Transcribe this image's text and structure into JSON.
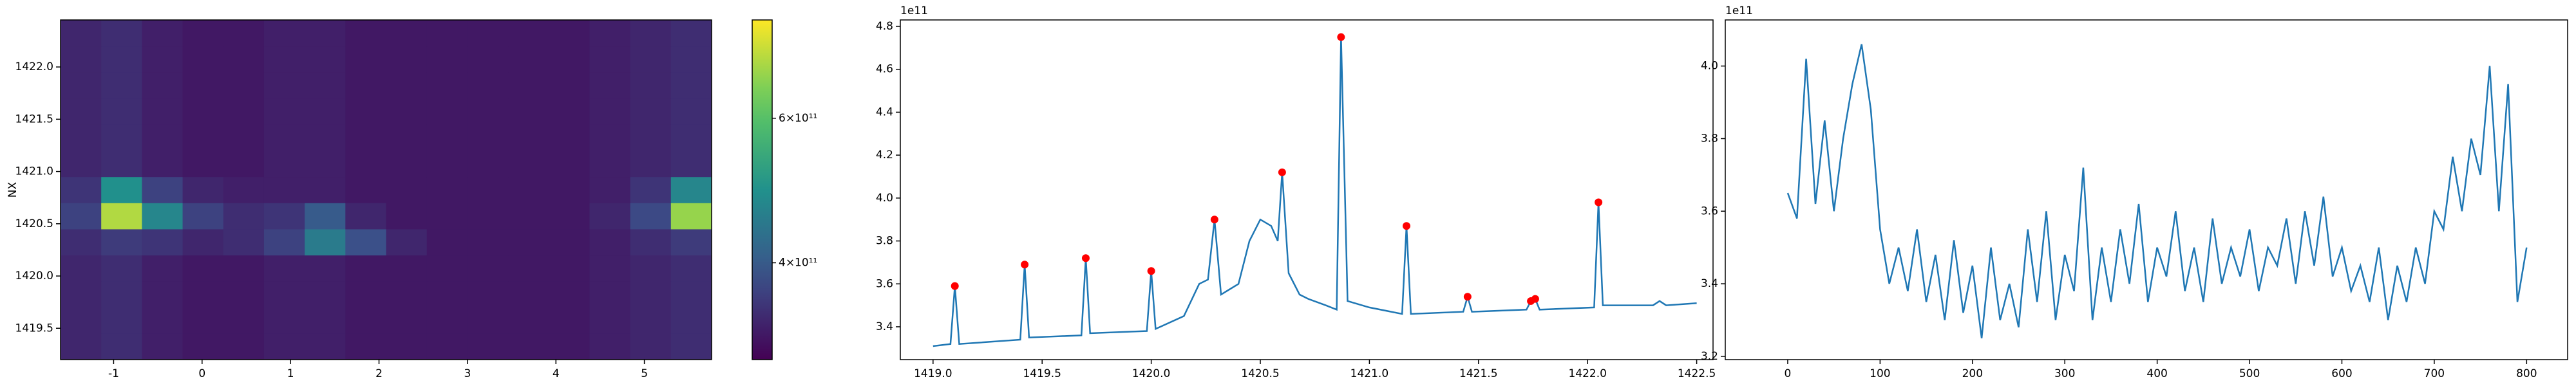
{
  "chart_data": [
    {
      "type": "heatmap",
      "ylabel": "NX",
      "x_edges": [
        -1.6,
        -1.14,
        -0.68,
        -0.22,
        0.24,
        0.7,
        1.16,
        1.62,
        2.08,
        2.54,
        3.0,
        3.46,
        3.92,
        4.38,
        4.84,
        5.3,
        5.76
      ],
      "y_edges": [
        1419.2,
        1419.45,
        1419.7,
        1419.95,
        1420.2,
        1420.45,
        1420.7,
        1420.95,
        1421.2,
        1421.45,
        1421.7,
        1421.95,
        1422.2,
        1422.45
      ],
      "z": [
        [
          320000000000.0,
          330000000000.0,
          310000000000.0,
          300000000000.0,
          300000000000.0,
          310000000000.0,
          310000000000.0,
          300000000000.0,
          300000000000.0,
          300000000000.0,
          300000000000.0,
          300000000000.0,
          300000000000.0,
          310000000000.0,
          320000000000.0,
          330000000000.0
        ],
        [
          320000000000.0,
          330000000000.0,
          310000000000.0,
          300000000000.0,
          300000000000.0,
          310000000000.0,
          310000000000.0,
          300000000000.0,
          300000000000.0,
          300000000000.0,
          300000000000.0,
          300000000000.0,
          300000000000.0,
          310000000000.0,
          320000000000.0,
          330000000000.0
        ],
        [
          320000000000.0,
          330000000000.0,
          310000000000.0,
          300000000000.0,
          300000000000.0,
          310000000000.0,
          310000000000.0,
          300000000000.0,
          300000000000.0,
          300000000000.0,
          300000000000.0,
          300000000000.0,
          300000000000.0,
          310000000000.0,
          320000000000.0,
          330000000000.0
        ],
        [
          320000000000.0,
          330000000000.0,
          310000000000.0,
          300000000000.0,
          300000000000.0,
          310000000000.0,
          310000000000.0,
          300000000000.0,
          300000000000.0,
          300000000000.0,
          300000000000.0,
          300000000000.0,
          300000000000.0,
          310000000000.0,
          320000000000.0,
          330000000000.0
        ],
        [
          330000000000.0,
          350000000000.0,
          340000000000.0,
          320000000000.0,
          330000000000.0,
          360000000000.0,
          460000000000.0,
          380000000000.0,
          320000000000.0,
          300000000000.0,
          300000000000.0,
          300000000000.0,
          300000000000.0,
          310000000000.0,
          330000000000.0,
          350000000000.0
        ],
        [
          360000000000.0,
          680000000000.0,
          480000000000.0,
          360000000000.0,
          330000000000.0,
          340000000000.0,
          400000000000.0,
          320000000000.0,
          300000000000.0,
          300000000000.0,
          300000000000.0,
          300000000000.0,
          300000000000.0,
          320000000000.0,
          370000000000.0,
          660000000000.0
        ],
        [
          340000000000.0,
          500000000000.0,
          360000000000.0,
          320000000000.0,
          310000000000.0,
          310000000000.0,
          310000000000.0,
          300000000000.0,
          300000000000.0,
          300000000000.0,
          300000000000.0,
          300000000000.0,
          300000000000.0,
          310000000000.0,
          340000000000.0,
          480000000000.0
        ],
        [
          320000000000.0,
          330000000000.0,
          310000000000.0,
          300000000000.0,
          300000000000.0,
          310000000000.0,
          310000000000.0,
          300000000000.0,
          300000000000.0,
          300000000000.0,
          300000000000.0,
          300000000000.0,
          300000000000.0,
          310000000000.0,
          320000000000.0,
          330000000000.0
        ],
        [
          320000000000.0,
          330000000000.0,
          310000000000.0,
          300000000000.0,
          300000000000.0,
          310000000000.0,
          310000000000.0,
          300000000000.0,
          300000000000.0,
          300000000000.0,
          300000000000.0,
          300000000000.0,
          300000000000.0,
          310000000000.0,
          320000000000.0,
          330000000000.0
        ],
        [
          320000000000.0,
          330000000000.0,
          310000000000.0,
          300000000000.0,
          300000000000.0,
          310000000000.0,
          310000000000.0,
          300000000000.0,
          300000000000.0,
          300000000000.0,
          300000000000.0,
          300000000000.0,
          300000000000.0,
          310000000000.0,
          320000000000.0,
          330000000000.0
        ],
        [
          320000000000.0,
          330000000000.0,
          310000000000.0,
          300000000000.0,
          300000000000.0,
          310000000000.0,
          310000000000.0,
          300000000000.0,
          300000000000.0,
          300000000000.0,
          300000000000.0,
          300000000000.0,
          300000000000.0,
          310000000000.0,
          320000000000.0,
          330000000000.0
        ],
        [
          320000000000.0,
          330000000000.0,
          310000000000.0,
          300000000000.0,
          300000000000.0,
          310000000000.0,
          310000000000.0,
          300000000000.0,
          300000000000.0,
          300000000000.0,
          300000000000.0,
          300000000000.0,
          300000000000.0,
          310000000000.0,
          320000000000.0,
          330000000000.0
        ],
        [
          320000000000.0,
          330000000000.0,
          310000000000.0,
          300000000000.0,
          300000000000.0,
          310000000000.0,
          310000000000.0,
          300000000000.0,
          300000000000.0,
          300000000000.0,
          300000000000.0,
          300000000000.0,
          300000000000.0,
          310000000000.0,
          320000000000.0,
          330000000000.0
        ]
      ],
      "xlim": [
        -1.6,
        5.76
      ],
      "ylim": [
        1419.2,
        1422.45
      ],
      "xticks": [
        -1,
        0,
        1,
        2,
        3,
        4,
        5
      ],
      "yticks": [
        1419.5,
        {
          "value": 1420.0,
          "label": "1420.0"
        },
        1420.5,
        {
          "value": 1421.0,
          "label": "1421.0"
        },
        1421.5,
        {
          "value": 1422.0,
          "label": "1422.0"
        }
      ],
      "colormap": "viridis",
      "colorbar": {
        "lim": [
          266000000000.0,
          736000000000.0
        ],
        "ticks": [
          {
            "value": 400000000000.0,
            "label": "4×10¹¹"
          },
          {
            "value": 600000000000.0,
            "label": "6×10¹¹"
          }
        ]
      }
    },
    {
      "type": "line",
      "color": "#1f77b4",
      "offset_label": "1e11",
      "x": [
        1419.0,
        1419.08,
        1419.1,
        1419.12,
        1419.4,
        1419.42,
        1419.44,
        1419.68,
        1419.7,
        1419.72,
        1419.98,
        1420.0,
        1420.02,
        1420.15,
        1420.22,
        1420.26,
        1420.29,
        1420.32,
        1420.4,
        1420.45,
        1420.5,
        1420.55,
        1420.58,
        1420.6,
        1420.63,
        1420.68,
        1420.72,
        1420.8,
        1420.85,
        1420.87,
        1420.9,
        1421.0,
        1421.15,
        1421.17,
        1421.19,
        1421.43,
        1421.45,
        1421.47,
        1421.72,
        1421.74,
        1421.76,
        1421.78,
        1422.03,
        1422.05,
        1422.07,
        1422.3,
        1422.33,
        1422.36,
        1422.5
      ],
      "values": [
        3.31,
        3.32,
        3.59,
        3.32,
        3.34,
        3.69,
        3.35,
        3.36,
        3.72,
        3.37,
        3.38,
        3.66,
        3.39,
        3.45,
        3.6,
        3.62,
        3.9,
        3.55,
        3.6,
        3.8,
        3.9,
        3.87,
        3.8,
        4.12,
        3.65,
        3.55,
        3.53,
        3.5,
        3.48,
        4.75,
        3.52,
        3.49,
        3.46,
        3.87,
        3.46,
        3.47,
        3.54,
        3.47,
        3.48,
        3.52,
        3.53,
        3.48,
        3.49,
        3.98,
        3.5,
        3.5,
        3.52,
        3.5,
        3.51
      ],
      "markers": {
        "color": "red",
        "x": [
          1419.1,
          1419.42,
          1419.7,
          1420.0,
          1420.29,
          1420.6,
          1420.87,
          1421.17,
          1421.45,
          1421.74,
          1421.76,
          1422.05
        ],
        "values": [
          3.59,
          3.69,
          3.72,
          3.66,
          3.9,
          4.12,
          4.75,
          3.87,
          3.54,
          3.52,
          3.53,
          3.98
        ]
      },
      "xlim": [
        1418.85,
        1422.575
      ],
      "ylim": [
        3.247,
        4.83
      ],
      "xticks": [
        {
          "value": 1419.0,
          "label": "1419.0"
        },
        1419.5,
        {
          "value": 1420.0,
          "label": "1420.0"
        },
        1420.5,
        {
          "value": 1421.0,
          "label": "1421.0"
        },
        1421.5,
        {
          "value": 1422.0,
          "label": "1422.0"
        },
        1422.5
      ],
      "yticks": [
        3.4,
        3.6,
        3.8,
        {
          "value": 4.0,
          "label": "4.0"
        },
        4.2,
        4.4,
        4.6,
        4.8
      ]
    },
    {
      "type": "line",
      "color": "#1f77b4",
      "offset_label": "1e11",
      "x": [
        0,
        10,
        20,
        30,
        40,
        50,
        60,
        70,
        80,
        90,
        100,
        110,
        120,
        130,
        140,
        150,
        160,
        170,
        180,
        190,
        200,
        210,
        220,
        230,
        240,
        250,
        260,
        270,
        280,
        290,
        300,
        310,
        320,
        330,
        340,
        350,
        360,
        370,
        380,
        390,
        400,
        410,
        420,
        430,
        440,
        450,
        460,
        470,
        480,
        490,
        500,
        510,
        520,
        530,
        540,
        550,
        560,
        570,
        580,
        590,
        600,
        610,
        620,
        630,
        640,
        650,
        660,
        670,
        680,
        690,
        700,
        710,
        720,
        730,
        740,
        750,
        760,
        770,
        780,
        790,
        800
      ],
      "values": [
        3.65,
        3.58,
        4.02,
        3.62,
        3.85,
        3.6,
        3.8,
        3.95,
        4.06,
        3.88,
        3.55,
        3.4,
        3.5,
        3.38,
        3.55,
        3.35,
        3.48,
        3.3,
        3.52,
        3.32,
        3.45,
        3.25,
        3.5,
        3.3,
        3.4,
        3.28,
        3.55,
        3.35,
        3.6,
        3.3,
        3.48,
        3.38,
        3.72,
        3.3,
        3.5,
        3.35,
        3.55,
        3.4,
        3.62,
        3.35,
        3.5,
        3.42,
        3.6,
        3.38,
        3.5,
        3.35,
        3.58,
        3.4,
        3.5,
        3.42,
        3.55,
        3.38,
        3.5,
        3.45,
        3.58,
        3.4,
        3.6,
        3.45,
        3.64,
        3.42,
        3.5,
        3.38,
        3.45,
        3.35,
        3.5,
        3.3,
        3.45,
        3.35,
        3.5,
        3.4,
        3.6,
        3.55,
        3.75,
        3.6,
        3.8,
        3.7,
        4.0,
        3.6,
        3.95,
        3.35,
        3.5
      ],
      "xlim": [
        -67.6,
        844.4
      ],
      "ylim": [
        3.191,
        4.127
      ],
      "xticks": [
        0,
        100,
        200,
        300,
        400,
        500,
        600,
        700,
        800
      ],
      "yticks": [
        3.2,
        3.4,
        3.6,
        3.8,
        {
          "value": 4.0,
          "label": "4.0"
        }
      ]
    }
  ]
}
